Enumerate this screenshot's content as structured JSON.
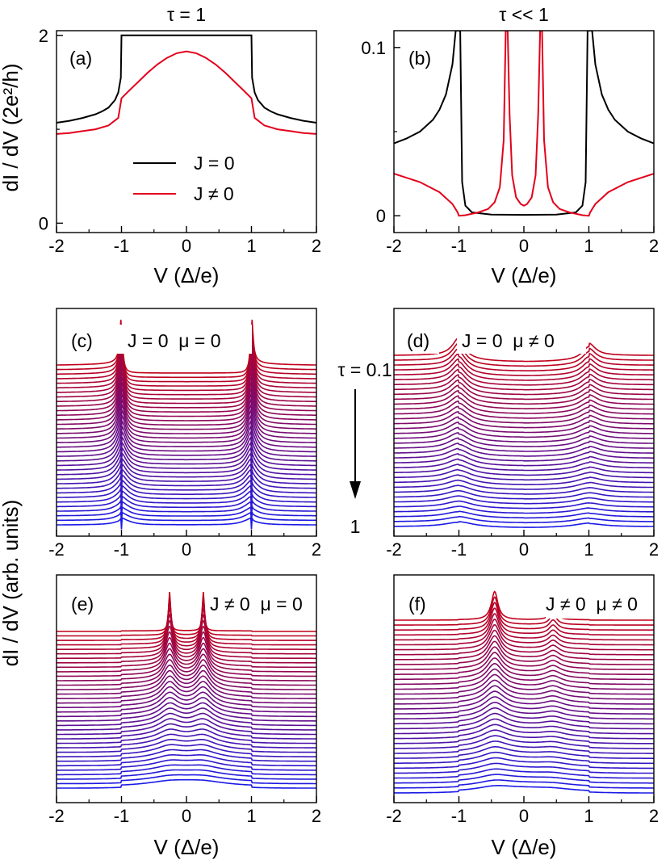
{
  "figure": {
    "shared_ylabel_top": "dI / dV (2e²/h)",
    "shared_ylabel_bottom": "dI / dV (arb. units)",
    "tau_annotation_top": "τ = 0.1",
    "tau_annotation_bottom": "1"
  },
  "chart_data": [
    {
      "id": "a",
      "type": "line",
      "title": "τ = 1",
      "panel_label": "(a)",
      "xlabel": "V (Δ/e)",
      "ylabel": "dI / dV (2e²/h)",
      "xlim": [
        -2,
        2
      ],
      "ylim": [
        -0.1,
        2.05
      ],
      "xticks": [
        "-2",
        "-1",
        "0",
        "1",
        "2"
      ],
      "yticks": [
        "0",
        "2"
      ],
      "legend_position": "center",
      "series": [
        {
          "name": "J = 0",
          "color": "#000000",
          "x": [
            -2,
            -1.8,
            -1.6,
            -1.4,
            -1.3,
            -1.2,
            -1.1,
            -1.05,
            -1.01,
            -1.0,
            -0.99,
            0,
            0.99,
            1.0,
            1.01,
            1.05,
            1.1,
            1.2,
            1.3,
            1.4,
            1.6,
            1.8,
            2
          ],
          "y": [
            1.07,
            1.09,
            1.12,
            1.16,
            1.19,
            1.23,
            1.31,
            1.39,
            1.55,
            2.0,
            2.0,
            2.0,
            2.0,
            2.0,
            1.55,
            1.39,
            1.31,
            1.23,
            1.19,
            1.16,
            1.12,
            1.09,
            1.07
          ]
        },
        {
          "name": "J ≠ 0",
          "color": "#e3001b",
          "x": [
            -2,
            -1.8,
            -1.6,
            -1.4,
            -1.2,
            -1.05,
            -1.0,
            -0.9,
            -0.75,
            -0.6,
            -0.45,
            -0.3,
            -0.15,
            0,
            0.15,
            0.3,
            0.45,
            0.6,
            0.75,
            0.9,
            1.0,
            1.05,
            1.2,
            1.4,
            1.6,
            1.8,
            2
          ],
          "y": [
            0.95,
            0.96,
            0.98,
            1.0,
            1.04,
            1.12,
            1.33,
            1.4,
            1.5,
            1.6,
            1.69,
            1.76,
            1.81,
            1.83,
            1.81,
            1.76,
            1.69,
            1.6,
            1.5,
            1.4,
            1.33,
            1.12,
            1.04,
            1.0,
            0.98,
            0.96,
            0.95
          ]
        }
      ]
    },
    {
      "id": "b",
      "type": "line",
      "title": "τ << 1",
      "panel_label": "(b)",
      "xlabel": "V (Δ/e)",
      "ylabel": "",
      "xlim": [
        -2,
        2
      ],
      "ylim": [
        -0.01,
        0.11
      ],
      "xticks": [
        "-2",
        "-1",
        "0",
        "1",
        "2"
      ],
      "yticks": [
        "0",
        "0.1"
      ],
      "series": [
        {
          "name": "J = 0",
          "color": "#000000",
          "x": [
            -2,
            -1.8,
            -1.6,
            -1.4,
            -1.3,
            -1.2,
            -1.1,
            -1.05,
            -1.02,
            -1.0,
            -0.98,
            -0.95,
            -0.9,
            -0.8,
            -0.5,
            0,
            0.5,
            0.8,
            0.9,
            0.95,
            0.98,
            1.0,
            1.02,
            1.05,
            1.1,
            1.2,
            1.3,
            1.4,
            1.6,
            1.8,
            2
          ],
          "y": [
            0.043,
            0.046,
            0.05,
            0.057,
            0.063,
            0.072,
            0.09,
            0.11,
            0.11,
            0.11,
            0.11,
            0.02,
            0.006,
            0.002,
            0.0007,
            0.0005,
            0.0007,
            0.002,
            0.006,
            0.02,
            0.11,
            0.11,
            0.11,
            0.11,
            0.09,
            0.072,
            0.063,
            0.057,
            0.05,
            0.046,
            0.043
          ]
        },
        {
          "name": "J ≠ 0",
          "color": "#e3001b",
          "x": [
            -2,
            -1.6,
            -1.3,
            -1.1,
            -1.02,
            -1.0,
            -0.9,
            -0.7,
            -0.55,
            -0.45,
            -0.37,
            -0.31,
            -0.28,
            -0.27,
            -0.25,
            -0.22,
            -0.18,
            -0.12,
            -0.05,
            0,
            0.05,
            0.12,
            0.18,
            0.22,
            0.25,
            0.27,
            0.28,
            0.31,
            0.37,
            0.45,
            0.55,
            0.7,
            0.9,
            1.0,
            1.02,
            1.1,
            1.3,
            1.6,
            2
          ],
          "y": [
            0.025,
            0.02,
            0.014,
            0.007,
            0.002,
            0.0,
            0.0003,
            0.002,
            0.004,
            0.008,
            0.017,
            0.045,
            0.11,
            0.11,
            0.11,
            0.06,
            0.024,
            0.011,
            0.007,
            0.006,
            0.007,
            0.011,
            0.024,
            0.06,
            0.11,
            0.11,
            0.11,
            0.045,
            0.017,
            0.008,
            0.004,
            0.002,
            0.0003,
            0.0,
            0.002,
            0.007,
            0.014,
            0.02,
            0.025
          ]
        }
      ]
    },
    {
      "id": "c",
      "type": "line",
      "panel_label": "(c)",
      "annotation": "J = 0  μ = 0",
      "xlabel": "",
      "xlim": [
        -2,
        2
      ],
      "xticks": [
        "-2",
        "-1",
        "0",
        "1",
        "2"
      ],
      "curve_count": 36,
      "tau_range": [
        0.1,
        1
      ],
      "color_first": "#c0001a",
      "color_last": "#1a1ae6",
      "peak_positions": [
        -1,
        1
      ],
      "mu": 0
    },
    {
      "id": "d",
      "type": "line",
      "panel_label": "(d)",
      "annotation": "J = 0  μ ≠ 0",
      "xlabel": "",
      "xlim": [
        -2,
        2
      ],
      "xticks": [
        "-2",
        "-1",
        "0",
        "1",
        "2"
      ],
      "curve_count": 36,
      "tau_range": [
        0.1,
        1
      ],
      "color_first": "#c0001a",
      "color_last": "#1a1ae6",
      "peak_positions": [
        -1,
        1
      ],
      "mu": "nonzero"
    },
    {
      "id": "e",
      "type": "line",
      "panel_label": "(e)",
      "annotation": "J ≠ 0  μ = 0",
      "xlabel": "V (Δ/e)",
      "xlim": [
        -2,
        2
      ],
      "xticks": [
        "-2",
        "-1",
        "0",
        "1",
        "2"
      ],
      "curve_count": 36,
      "tau_range": [
        0.1,
        1
      ],
      "color_first": "#c0001a",
      "color_last": "#1a1ae6",
      "peak_positions": [
        -0.26,
        0.26
      ],
      "mu": 0
    },
    {
      "id": "f",
      "type": "line",
      "panel_label": "(f)",
      "annotation": "J ≠ 0  μ ≠ 0",
      "xlabel": "V (Δ/e)",
      "xlim": [
        -2,
        2
      ],
      "xticks": [
        "-2",
        "-1",
        "0",
        "1",
        "2"
      ],
      "curve_count": 36,
      "tau_range": [
        0.1,
        1
      ],
      "color_first": "#c0001a",
      "color_last": "#1a1ae6",
      "peak_positions": [
        -0.45,
        0.45
      ],
      "mu": "nonzero"
    }
  ]
}
